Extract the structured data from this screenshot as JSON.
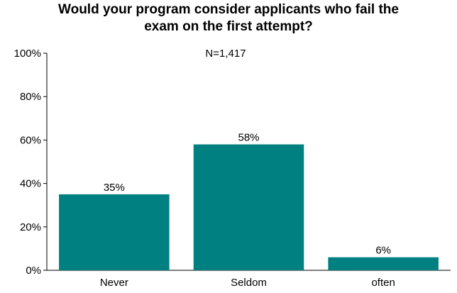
{
  "chart_data": {
    "type": "bar",
    "title_lines": [
      "Would your program consider applicants who fail the",
      "exam on the first attempt?"
    ],
    "subtitle": "N=1,417",
    "categories": [
      "Never",
      "Seldom",
      "often"
    ],
    "values": [
      35,
      58,
      6
    ],
    "data_labels": [
      "35%",
      "58%",
      "6%"
    ],
    "y_ticks": [
      "0%",
      "20%",
      "40%",
      "60%",
      "80%",
      "100%"
    ],
    "ylim": [
      0,
      100
    ],
    "grid": false,
    "bar_color": "#008080"
  }
}
